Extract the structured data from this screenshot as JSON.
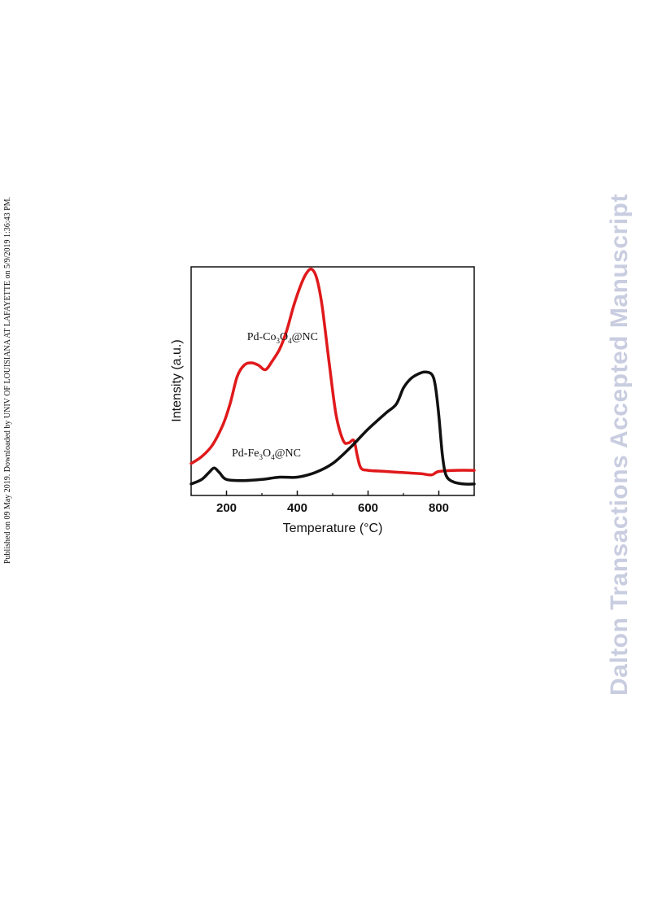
{
  "side_note": "Published on 09 May 2019. Downloaded by UNIV OF LOUISIANA AT LAFAYETTE on 5/9/2019 1:36:43 PM.",
  "watermark": "Dalton Transactions Accepted Manuscript",
  "chart_data": {
    "type": "line",
    "xlabel": "Temperature (°C)",
    "ylabel": "Intensity (a.u.)",
    "xlim": [
      100,
      900
    ],
    "ylim": [
      0,
      1
    ],
    "xticks": [
      200,
      400,
      600,
      800
    ],
    "grid": false,
    "legend": "inline labels",
    "series": [
      {
        "label_parts": [
          "Pd-Co",
          "3",
          "O",
          "4",
          "@NC"
        ],
        "color": "#e0191b",
        "label_anchor": [
          258,
          0.68
        ],
        "x": [
          100,
          130,
          160,
          190,
          210,
          230,
          250,
          270,
          290,
          310,
          330,
          350,
          370,
          390,
          410,
          425,
          440,
          455,
          470,
          490,
          510,
          530,
          545,
          560,
          570,
          580,
          600,
          650,
          700,
          750,
          780,
          800,
          850,
          900
        ],
        "y": [
          0.14,
          0.17,
          0.22,
          0.31,
          0.4,
          0.52,
          0.57,
          0.58,
          0.57,
          0.55,
          0.59,
          0.64,
          0.72,
          0.83,
          0.92,
          0.97,
          0.99,
          0.95,
          0.83,
          0.58,
          0.35,
          0.24,
          0.23,
          0.24,
          0.17,
          0.12,
          0.11,
          0.105,
          0.1,
          0.095,
          0.09,
          0.105,
          0.11,
          0.11
        ]
      },
      {
        "label_parts": [
          "Pd-Fe",
          "3",
          "O",
          "4",
          "@NC"
        ],
        "color": "#111111",
        "label_anchor": [
          215,
          0.17
        ],
        "x": [
          100,
          130,
          150,
          165,
          180,
          200,
          250,
          300,
          350,
          400,
          450,
          500,
          550,
          600,
          650,
          680,
          700,
          720,
          740,
          760,
          780,
          790,
          800,
          810,
          820,
          840,
          870,
          900
        ],
        "y": [
          0.05,
          0.07,
          0.1,
          0.12,
          0.1,
          0.07,
          0.065,
          0.07,
          0.08,
          0.08,
          0.1,
          0.14,
          0.21,
          0.29,
          0.36,
          0.4,
          0.47,
          0.51,
          0.53,
          0.54,
          0.53,
          0.48,
          0.35,
          0.18,
          0.09,
          0.06,
          0.05,
          0.05
        ]
      }
    ]
  }
}
